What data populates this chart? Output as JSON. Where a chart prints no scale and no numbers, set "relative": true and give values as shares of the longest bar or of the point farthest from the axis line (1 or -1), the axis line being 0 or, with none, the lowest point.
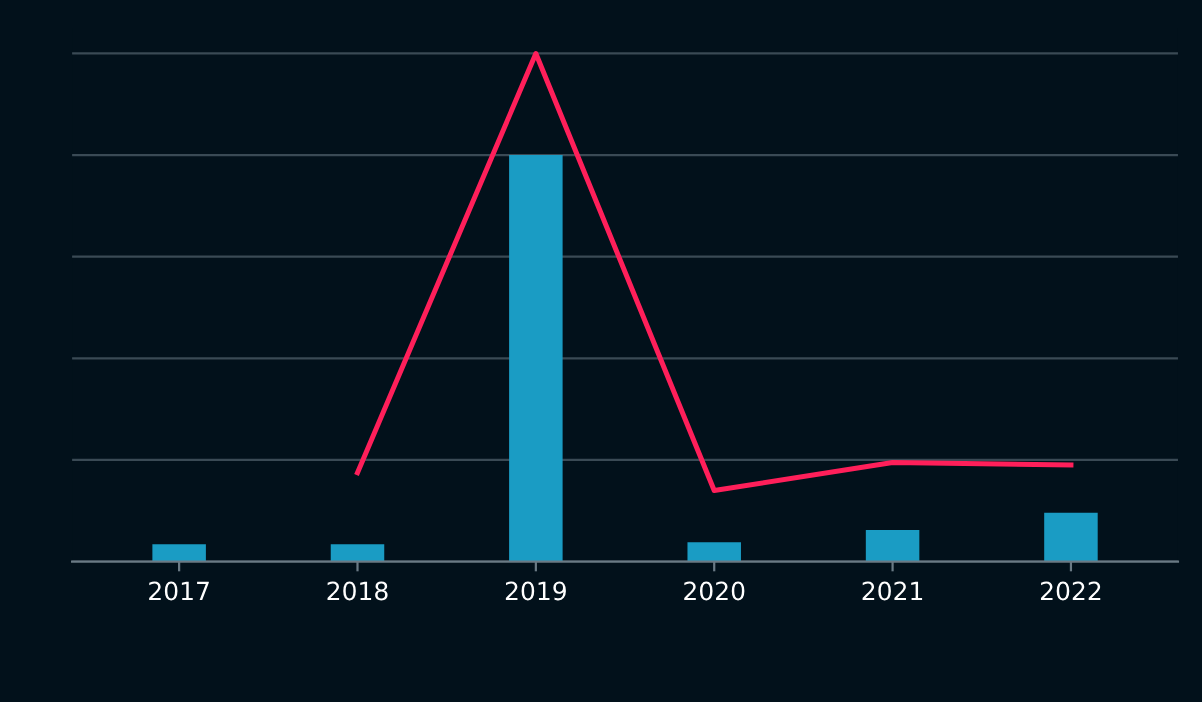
{
  "chart_data": {
    "type": "bar",
    "relative": true,
    "grid": "y",
    "marker": "none",
    "line_style": "solid",
    "categories": [
      "2017",
      "2018",
      "2019",
      "2020",
      "2021",
      "2022"
    ],
    "series": [
      {
        "color": "#1a9cc4",
        "values": [
          0.034,
          0.034,
          0.8,
          0.038,
          0.062,
          0.096
        ]
      },
      {
        "type": "line",
        "color": "#ff1f5a",
        "values": [
          null,
          0.175,
          1,
          0.14,
          0.195,
          0.19
        ]
      }
    ]
  }
}
